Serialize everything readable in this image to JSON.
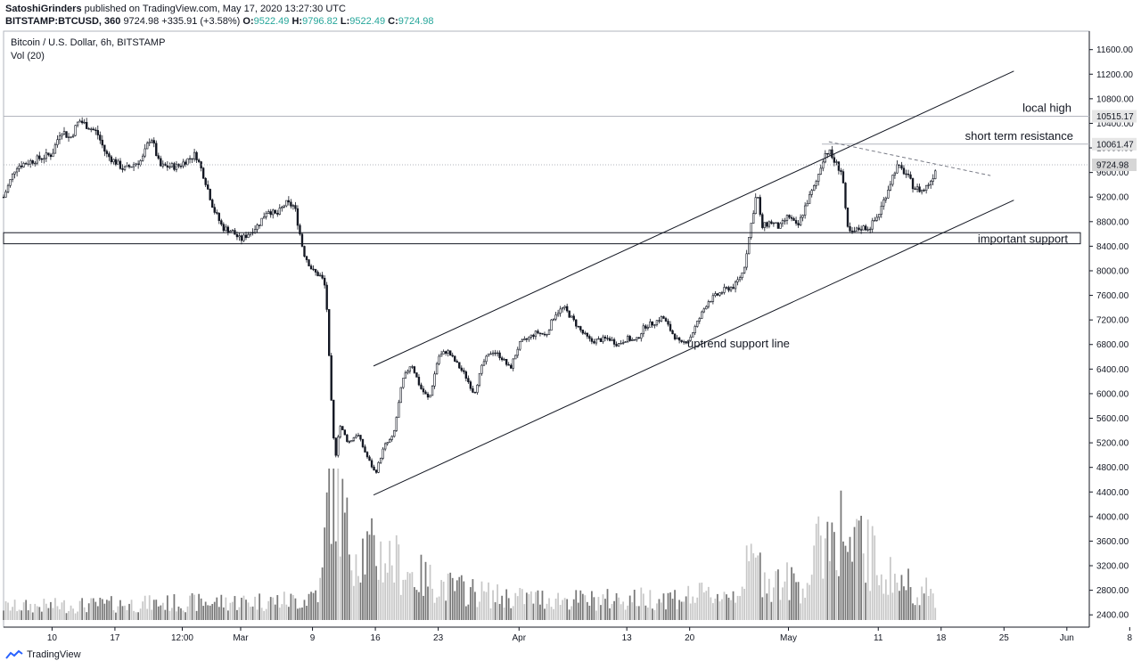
{
  "header": {
    "author": "SatoshiGrinders",
    "published_text": "published on TradingView.com, May 17, 2020 13:27:30 UTC",
    "symbol": "BITSTAMP:BTCUSD, 360",
    "last": "9724.98",
    "change": "+335.91 (+3.58%)",
    "open_label": "O:",
    "open": "9522.49",
    "high_label": "H:",
    "high": "9796.82",
    "low_label": "L:",
    "low": "9522.49",
    "close_label": "C:",
    "close": "9724.98"
  },
  "legend": {
    "title": "Bitcoin / U.S. Dollar, 6h, BITSTAMP",
    "volume": "Vol (20)"
  },
  "footer": {
    "brand": "TradingView"
  },
  "colors": {
    "candle": "#131722",
    "volume_dark": "#787878",
    "volume_light": "#c8c8c8",
    "line": "#131722"
  },
  "chart_data": {
    "type": "candlestick",
    "y_ticks": [
      2400,
      2800,
      3200,
      3600,
      4000,
      4400,
      4800,
      5200,
      5600,
      6000,
      6400,
      6800,
      7200,
      7600,
      8000,
      8400,
      8800,
      9200,
      9600,
      10000,
      10400,
      10800,
      11200,
      11600
    ],
    "ylim": [
      2200,
      11900
    ],
    "x_ticks": [
      {
        "label": "10",
        "day": 10
      },
      {
        "label": "17",
        "day": 17
      },
      {
        "label": "12:00",
        "day": 24.5
      },
      {
        "label": "Mar",
        "day": 31
      },
      {
        "label": "9",
        "day": 39
      },
      {
        "label": "16",
        "day": 46
      },
      {
        "label": "23",
        "day": 53
      },
      {
        "label": "Apr",
        "day": 62
      },
      {
        "label": "13",
        "day": 74
      },
      {
        "label": "20",
        "day": 81
      },
      {
        "label": "May",
        "day": 92
      },
      {
        "label": "11",
        "day": 102
      },
      {
        "label": "18",
        "day": 109
      },
      {
        "label": "25",
        "day": 116
      },
      {
        "label": "Jun",
        "day": 123
      },
      {
        "label": "8",
        "day": 130
      }
    ],
    "xlim": [
      4.6,
      125.5
    ],
    "price_path": [
      [
        4.6,
        9200
      ],
      [
        6,
        9700
      ],
      [
        8,
        9800
      ],
      [
        10,
        9900
      ],
      [
        11,
        10300
      ],
      [
        12,
        10150
      ],
      [
        13,
        10450
      ],
      [
        14,
        10350
      ],
      [
        15,
        10250
      ],
      [
        16,
        9900
      ],
      [
        18,
        9650
      ],
      [
        20,
        9800
      ],
      [
        21,
        10200
      ],
      [
        22,
        9700
      ],
      [
        24,
        9700
      ],
      [
        26,
        9900
      ],
      [
        27,
        9500
      ],
      [
        28,
        9000
      ],
      [
        29,
        8700
      ],
      [
        30,
        8650
      ],
      [
        31,
        8500
      ],
      [
        33,
        8750
      ],
      [
        34,
        9000
      ],
      [
        35,
        8900
      ],
      [
        36,
        9100
      ],
      [
        37,
        9050
      ],
      [
        38,
        8300
      ],
      [
        39,
        8000
      ],
      [
        40,
        7900
      ],
      [
        40.5,
        7700
      ],
      [
        41,
        6100
      ],
      [
        41.5,
        4900
      ],
      [
        42,
        5500
      ],
      [
        43,
        5200
      ],
      [
        44,
        5350
      ],
      [
        45,
        5000
      ],
      [
        46,
        4700
      ],
      [
        47,
        5150
      ],
      [
        48,
        5300
      ],
      [
        49,
        6200
      ],
      [
        50,
        6500
      ],
      [
        51,
        6100
      ],
      [
        52,
        5900
      ],
      [
        53,
        6600
      ],
      [
        54,
        6700
      ],
      [
        55,
        6500
      ],
      [
        56,
        6300
      ],
      [
        57,
        6000
      ],
      [
        58,
        6500
      ],
      [
        59,
        6700
      ],
      [
        60,
        6600
      ],
      [
        61,
        6400
      ],
      [
        62,
        6800
      ],
      [
        63,
        6900
      ],
      [
        64,
        7000
      ],
      [
        65,
        6950
      ],
      [
        66,
        7300
      ],
      [
        67,
        7400
      ],
      [
        68,
        7200
      ],
      [
        69,
        7000
      ],
      [
        70,
        6850
      ],
      [
        72,
        6900
      ],
      [
        73,
        6800
      ],
      [
        74,
        6900
      ],
      [
        75,
        6850
      ],
      [
        76,
        7100
      ],
      [
        77,
        7150
      ],
      [
        78,
        7250
      ],
      [
        79,
        7000
      ],
      [
        80,
        6800
      ],
      [
        81,
        6900
      ],
      [
        82,
        7200
      ],
      [
        83,
        7500
      ],
      [
        84,
        7600
      ],
      [
        85,
        7700
      ],
      [
        86,
        7750
      ],
      [
        87,
        8000
      ],
      [
        88,
        8900
      ],
      [
        88.5,
        9300
      ],
      [
        89,
        8700
      ],
      [
        90,
        8800
      ],
      [
        91,
        8700
      ],
      [
        92,
        8900
      ],
      [
        93,
        8700
      ],
      [
        94,
        9100
      ],
      [
        95,
        9400
      ],
      [
        96,
        9900
      ],
      [
        96.5,
        9950
      ],
      [
        97,
        9800
      ],
      [
        98,
        9600
      ],
      [
        98.5,
        8700
      ],
      [
        99,
        8600
      ],
      [
        100,
        8700
      ],
      [
        101,
        8700
      ],
      [
        102,
        8900
      ],
      [
        103,
        9300
      ],
      [
        104,
        9700
      ],
      [
        105,
        9600
      ],
      [
        106,
        9350
      ],
      [
        107,
        9300
      ],
      [
        108,
        9500
      ],
      [
        108.5,
        9725
      ]
    ],
    "volume_path": [
      [
        4.6,
        200
      ],
      [
        38,
        300
      ],
      [
        40,
        500
      ],
      [
        41,
        2300
      ],
      [
        42,
        1800
      ],
      [
        43,
        1200
      ],
      [
        44,
        1100
      ],
      [
        46,
        1000
      ],
      [
        48,
        900
      ],
      [
        50,
        700
      ],
      [
        54,
        500
      ],
      [
        60,
        350
      ],
      [
        70,
        300
      ],
      [
        80,
        350
      ],
      [
        86,
        400
      ],
      [
        88,
        900
      ],
      [
        90,
        600
      ],
      [
        94,
        550
      ],
      [
        96,
        1300
      ],
      [
        98,
        1400
      ],
      [
        99,
        900
      ],
      [
        100,
        1200
      ],
      [
        102,
        800
      ],
      [
        104,
        600
      ],
      [
        106,
        500
      ],
      [
        108.5,
        350
      ]
    ],
    "volume_max": 2300,
    "price_labels": [
      {
        "value": 10515.17,
        "text": "10515.17"
      },
      {
        "value": 10061.47,
        "text": "10061.47"
      },
      {
        "value": 9724.98,
        "text": "9724.98"
      }
    ],
    "annotations": {
      "local_high": {
        "text": "local high",
        "level": 10515.17
      },
      "short_term_resistance": {
        "text": "short term resistance",
        "level": 10061.47
      },
      "important_support": {
        "text": "important support",
        "top": 8620,
        "bottom": 8440
      },
      "uptrend_support_line": {
        "text": "uptrend support line"
      },
      "upper_channel": {
        "from": [
          45.8,
          6450
        ],
        "to": [
          117.1,
          11250
        ]
      },
      "lower_channel": {
        "from": [
          45.8,
          4350
        ],
        "to": [
          117.1,
          9150
        ]
      },
      "descending_resistance": {
        "from": [
          96.5,
          10100
        ],
        "to": [
          114.5,
          9550
        ]
      }
    }
  }
}
